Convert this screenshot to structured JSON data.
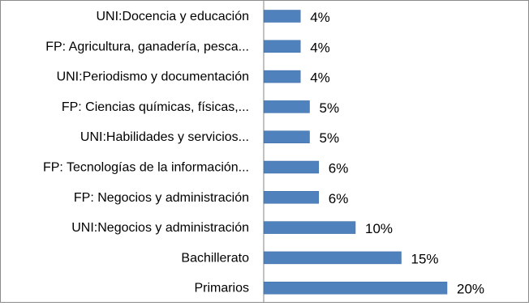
{
  "chart_data": {
    "type": "bar",
    "orientation": "horizontal",
    "categories": [
      "UNI:Docencia y educación",
      "FP: Agricultura, ganadería, pesca...",
      "UNI:Periodismo y documentación",
      "FP: Ciencias químicas, físicas,...",
      "UNI:Habilidades y servicios...",
      "FP: Tecnologías de la información...",
      "FP: Negocios y administración",
      "UNI:Negocios y administración",
      "Bachillerato",
      "Primarios"
    ],
    "values": [
      4,
      4,
      4,
      5,
      5,
      6,
      6,
      10,
      15,
      20
    ],
    "value_labels": [
      "4%",
      "4%",
      "4%",
      "5%",
      "5%",
      "6%",
      "6%",
      "10%",
      "15%",
      "20%"
    ],
    "xlim": [
      0,
      22
    ],
    "bar_color": "#4f81bd",
    "grid": false,
    "legend": "none"
  }
}
